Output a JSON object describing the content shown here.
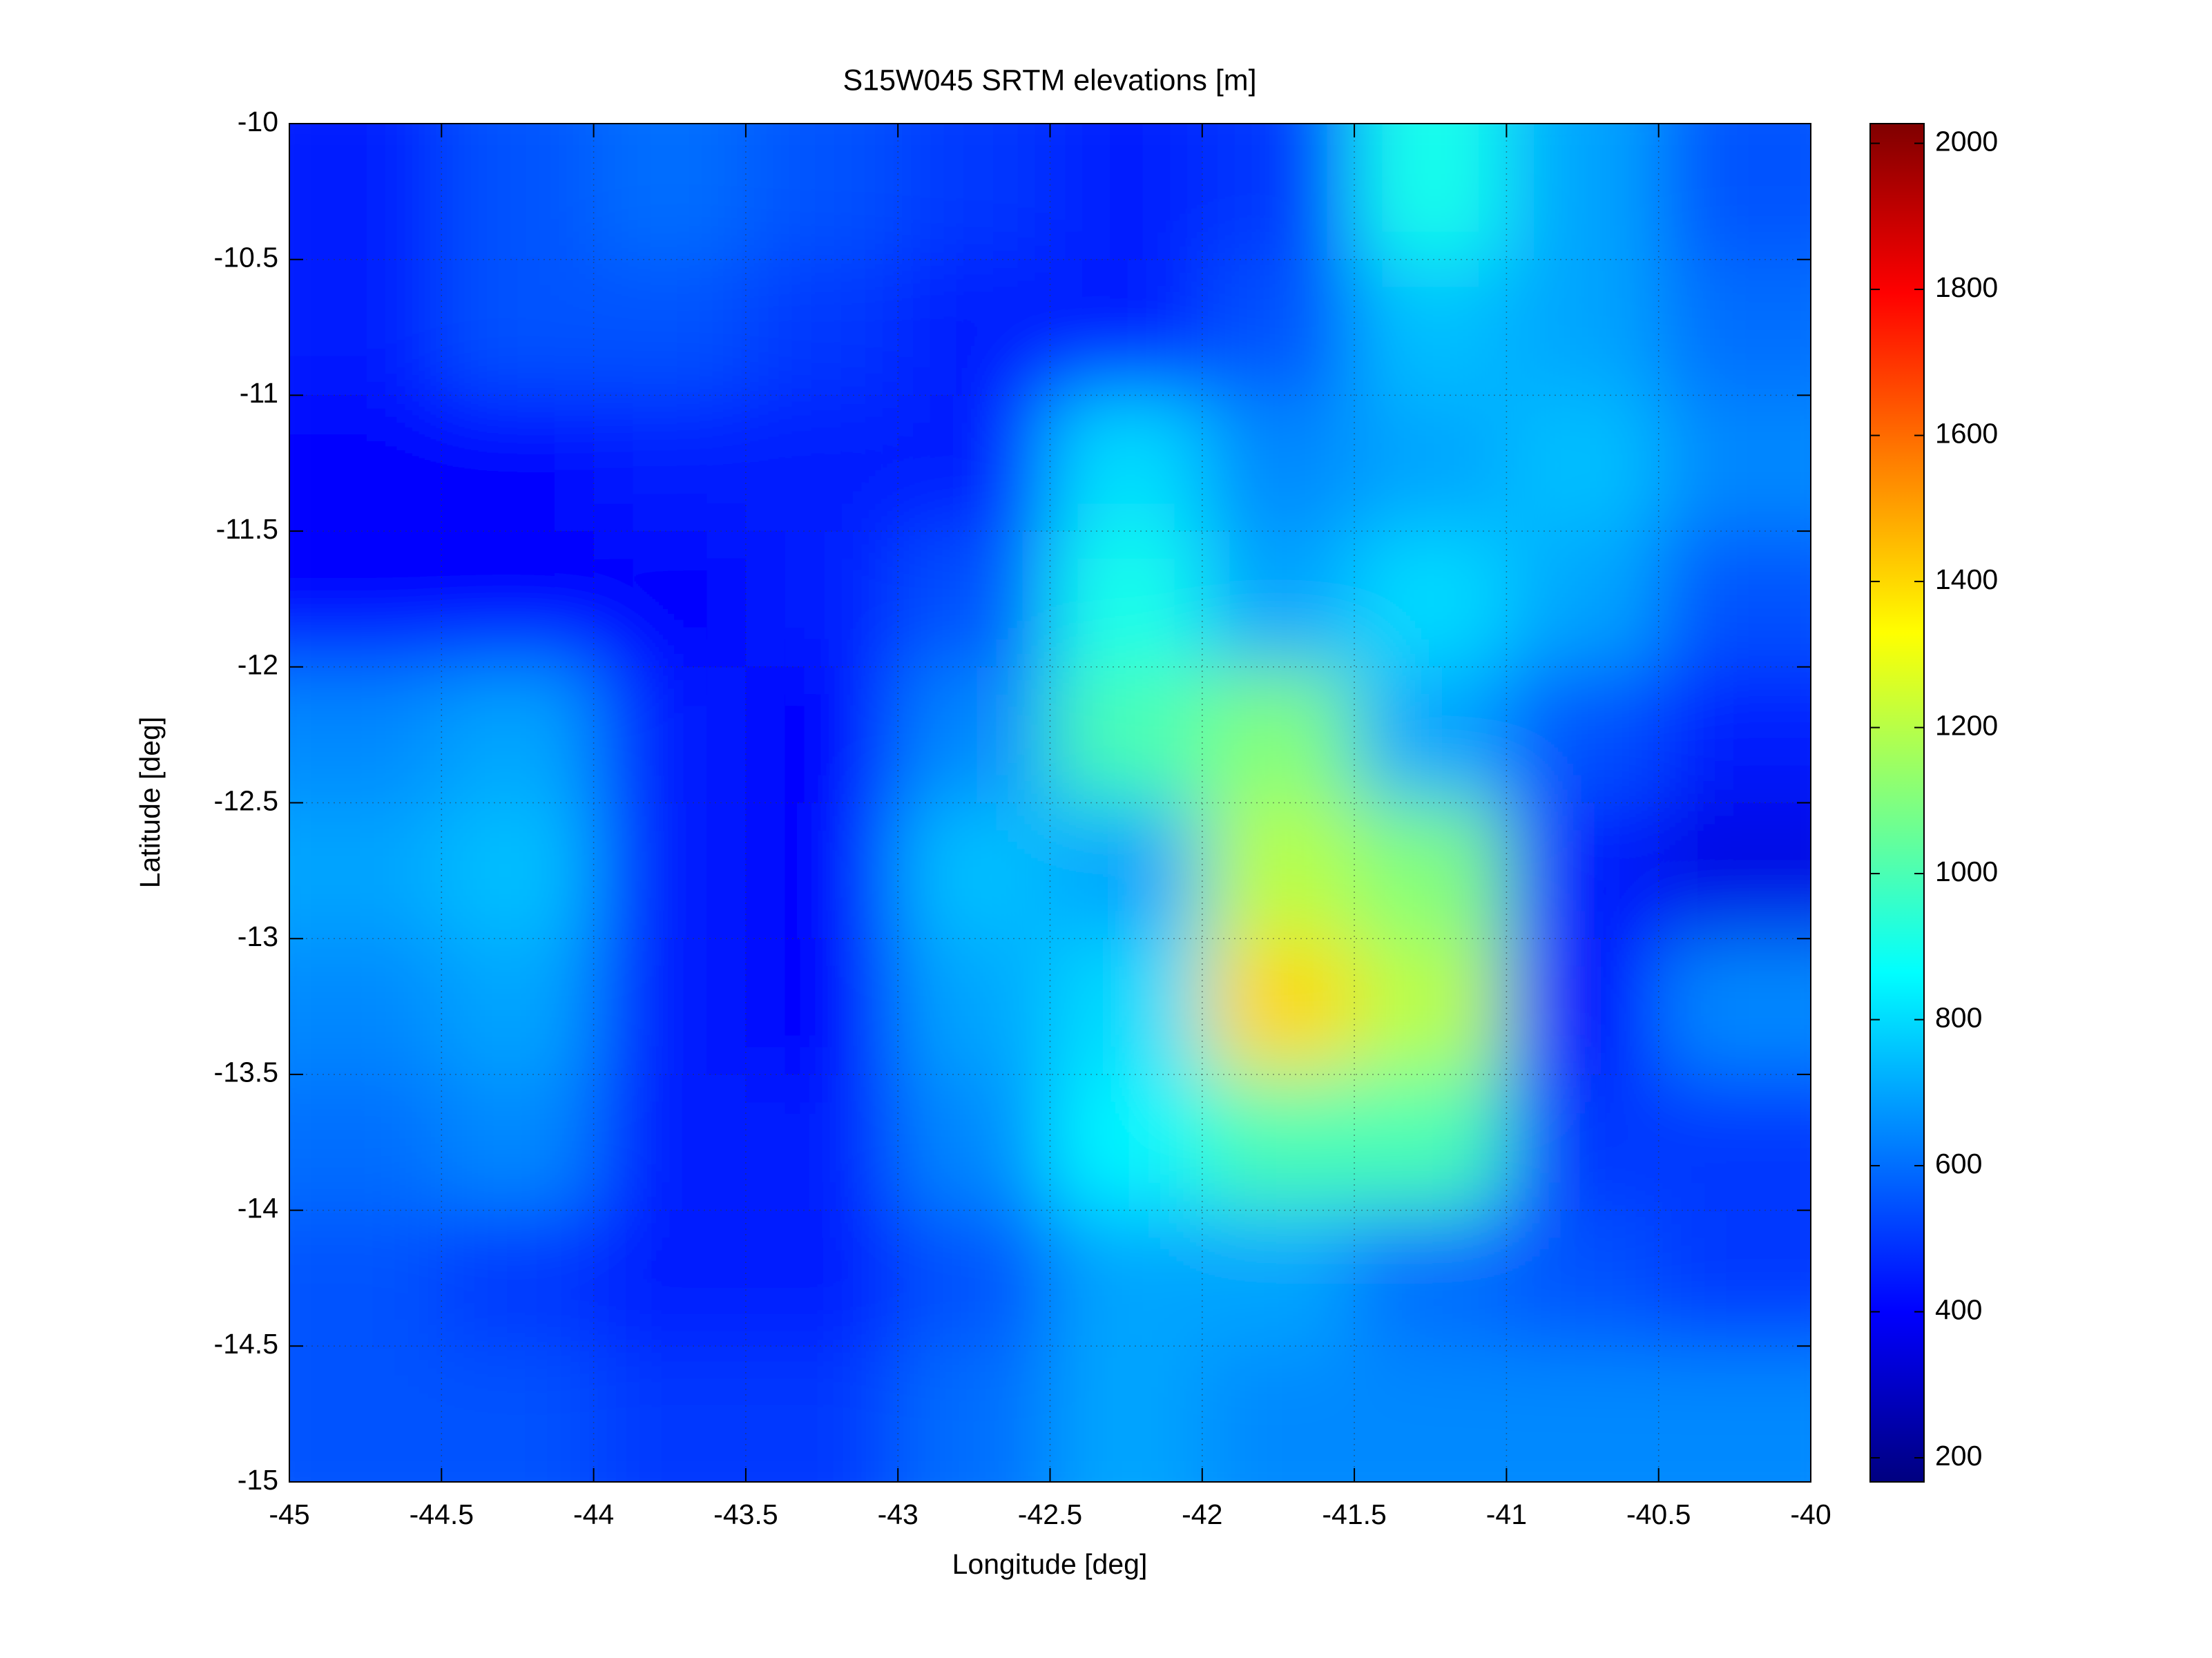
{
  "chart_data": {
    "type": "heatmap",
    "title": "S15W045 SRTM elevations [m]",
    "xlabel": "Longitude [deg]",
    "ylabel": "Latitude [deg]",
    "xlim": [
      -45,
      -40
    ],
    "ylim": [
      -15,
      -10
    ],
    "xticks": [
      -45,
      -44.5,
      -44,
      -43.5,
      -43,
      -42.5,
      -42,
      -41.5,
      -41,
      -40.5,
      -40
    ],
    "yticks": [
      -10,
      -10.5,
      -11,
      -11.5,
      -12,
      -12.5,
      -13,
      -13.5,
      -14,
      -14.5,
      -15
    ],
    "grid": true,
    "colormap": "jet",
    "clim": [
      167,
      2027
    ],
    "cticks": [
      200,
      400,
      600,
      800,
      1000,
      1200,
      1400,
      1600,
      1800,
      2000
    ],
    "z": [
      [
        450,
        550,
        600,
        550,
        500,
        450,
        500,
        900,
        700,
        550
      ],
      [
        450,
        550,
        550,
        500,
        450,
        450,
        550,
        750,
        700,
        600
      ],
      [
        400,
        400,
        450,
        450,
        450,
        800,
        650,
        700,
        750,
        650
      ],
      [
        400,
        400,
        400,
        450,
        550,
        900,
        700,
        800,
        700,
        550
      ],
      [
        650,
        700,
        450,
        400,
        650,
        1000,
        1100,
        700,
        550,
        450
      ],
      [
        700,
        750,
        450,
        400,
        750,
        700,
        1200,
        1100,
        450,
        350
      ],
      [
        650,
        700,
        450,
        400,
        700,
        800,
        1400,
        1200,
        400,
        650
      ],
      [
        600,
        650,
        450,
        450,
        650,
        850,
        1000,
        1000,
        500,
        500
      ],
      [
        550,
        500,
        450,
        450,
        550,
        700,
        700,
        600,
        550,
        500
      ],
      [
        550,
        550,
        500,
        500,
        600,
        700,
        650,
        650,
        650,
        650
      ]
    ]
  }
}
